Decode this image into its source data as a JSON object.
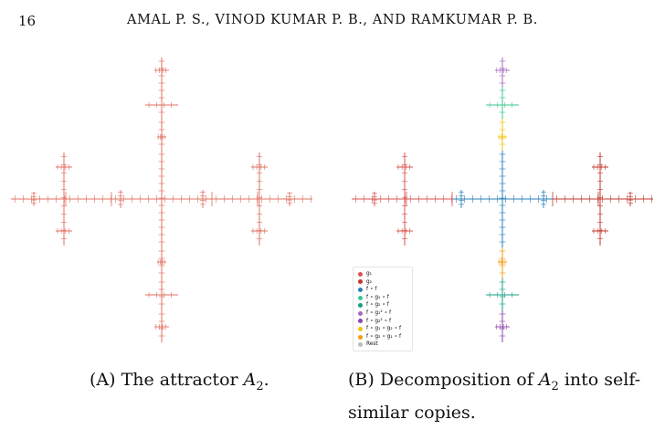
{
  "header": {
    "page_number": "16",
    "running_head": "AMAL P. S., VINOD KUMAR P. B., AND RAMKUMAR P. B."
  },
  "colors": {
    "g1": "#d9534f",
    "g2": "#c0392b",
    "ff": "#2a7fb8",
    "fg1f": "#3cc78e",
    "fg2f": "#16a085",
    "fg1sq": "#a569bd",
    "fg2sq": "#8e44ad",
    "fg1g2f": "#f1c40f",
    "fg2g1f": "#f39c12",
    "rest": "#bdbdbd",
    "attractor": "#e07060"
  },
  "legend": {
    "items": [
      {
        "key": "g1",
        "label": "g₁"
      },
      {
        "key": "g2",
        "label": "g₂"
      },
      {
        "key": "ff",
        "label": "f ∘ f"
      },
      {
        "key": "fg1f",
        "label": "f ∘ g₁ ∘ f"
      },
      {
        "key": "fg2f",
        "label": "f ∘ g₂ ∘ f"
      },
      {
        "key": "fg1sq",
        "label": "f ∘ g₁² ∘ f"
      },
      {
        "key": "fg2sq",
        "label": "f ∘ g₂² ∘ f"
      },
      {
        "key": "fg1g2f",
        "label": "f ∘ g₁ ∘ g₂ ∘ f"
      },
      {
        "key": "fg2g1f",
        "label": "f ∘ g₂ ∘ g₁ ∘ f"
      },
      {
        "key": "rest",
        "label": "Rest"
      }
    ]
  },
  "captions": {
    "a": {
      "letter": "(A)",
      "text": "The attractor ",
      "math": "A",
      "sub": "2",
      "end": "."
    },
    "b": {
      "letter": "(B)",
      "text_before": "Decomposition of ",
      "math": "A",
      "sub": "2",
      "text_after": " into self-similar copies."
    }
  }
}
